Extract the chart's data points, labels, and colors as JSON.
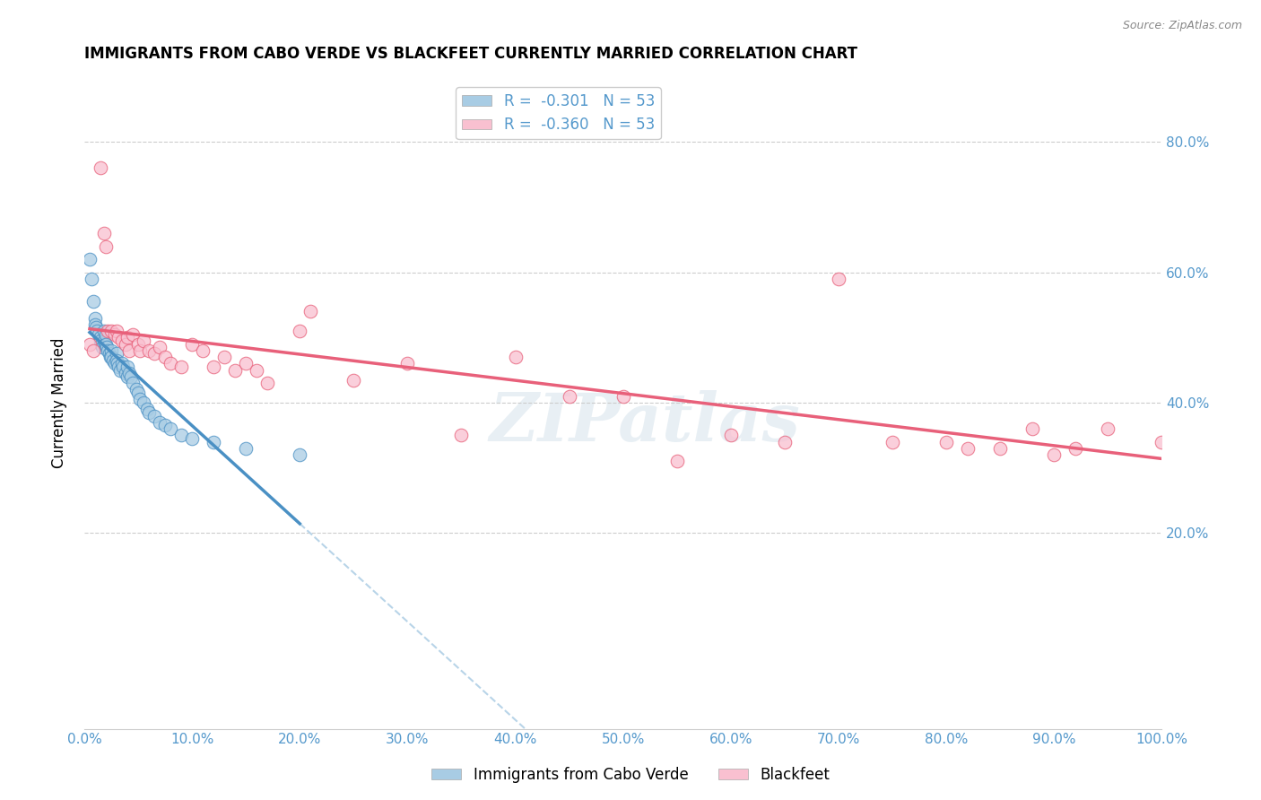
{
  "title": "IMMIGRANTS FROM CABO VERDE VS BLACKFEET CURRENTLY MARRIED CORRELATION CHART",
  "source": "Source: ZipAtlas.com",
  "ylabel": "Currently Married",
  "watermark": "ZIPatlas",
  "legend_label1": "Immigrants from Cabo Verde",
  "legend_label2": "Blackfeet",
  "r1": -0.301,
  "r2": -0.36,
  "n1": 53,
  "n2": 53,
  "color1": "#a8cce4",
  "color2": "#f9c0d0",
  "line_color1": "#4a90c4",
  "line_color2": "#e8607a",
  "dashed_color": "#b8d4e8",
  "tick_label_color": "#5599cc",
  "xlim": [
    0.0,
    1.0
  ],
  "ylim": [
    -0.1,
    0.9
  ],
  "xtick_vals": [
    0.0,
    0.1,
    0.2,
    0.3,
    0.4,
    0.5,
    0.6,
    0.7,
    0.8,
    0.9,
    1.0
  ],
  "ytick_vals": [
    0.2,
    0.4,
    0.6,
    0.8
  ],
  "cabo_verde_x": [
    0.005,
    0.007,
    0.008,
    0.01,
    0.01,
    0.011,
    0.012,
    0.013,
    0.015,
    0.015,
    0.016,
    0.017,
    0.018,
    0.018,
    0.019,
    0.02,
    0.02,
    0.021,
    0.022,
    0.023,
    0.024,
    0.025,
    0.025,
    0.027,
    0.028,
    0.03,
    0.03,
    0.031,
    0.032,
    0.033,
    0.035,
    0.036,
    0.038,
    0.04,
    0.04,
    0.042,
    0.043,
    0.045,
    0.048,
    0.05,
    0.052,
    0.055,
    0.058,
    0.06,
    0.065,
    0.07,
    0.075,
    0.08,
    0.09,
    0.1,
    0.12,
    0.15,
    0.2
  ],
  "cabo_verde_y": [
    0.62,
    0.59,
    0.555,
    0.53,
    0.52,
    0.515,
    0.51,
    0.505,
    0.5,
    0.495,
    0.49,
    0.485,
    0.51,
    0.495,
    0.49,
    0.505,
    0.49,
    0.485,
    0.48,
    0.475,
    0.47,
    0.48,
    0.47,
    0.465,
    0.46,
    0.475,
    0.465,
    0.46,
    0.455,
    0.45,
    0.46,
    0.455,
    0.445,
    0.455,
    0.44,
    0.445,
    0.44,
    0.43,
    0.42,
    0.415,
    0.405,
    0.4,
    0.39,
    0.385,
    0.38,
    0.37,
    0.365,
    0.36,
    0.35,
    0.345,
    0.34,
    0.33,
    0.32
  ],
  "blackfeet_x": [
    0.005,
    0.008,
    0.015,
    0.018,
    0.02,
    0.022,
    0.025,
    0.028,
    0.03,
    0.032,
    0.035,
    0.038,
    0.04,
    0.042,
    0.045,
    0.05,
    0.052,
    0.055,
    0.06,
    0.065,
    0.07,
    0.075,
    0.08,
    0.09,
    0.1,
    0.11,
    0.12,
    0.13,
    0.14,
    0.15,
    0.16,
    0.17,
    0.2,
    0.21,
    0.25,
    0.3,
    0.35,
    0.4,
    0.45,
    0.5,
    0.55,
    0.6,
    0.65,
    0.7,
    0.75,
    0.8,
    0.82,
    0.85,
    0.88,
    0.9,
    0.92,
    0.95,
    1.0
  ],
  "blackfeet_y": [
    0.49,
    0.48,
    0.76,
    0.66,
    0.64,
    0.51,
    0.51,
    0.505,
    0.51,
    0.5,
    0.495,
    0.49,
    0.5,
    0.48,
    0.505,
    0.49,
    0.48,
    0.495,
    0.48,
    0.475,
    0.485,
    0.47,
    0.46,
    0.455,
    0.49,
    0.48,
    0.455,
    0.47,
    0.45,
    0.46,
    0.45,
    0.43,
    0.51,
    0.54,
    0.435,
    0.46,
    0.35,
    0.47,
    0.41,
    0.41,
    0.31,
    0.35,
    0.34,
    0.59,
    0.34,
    0.34,
    0.33,
    0.33,
    0.36,
    0.32,
    0.33,
    0.36,
    0.34
  ]
}
